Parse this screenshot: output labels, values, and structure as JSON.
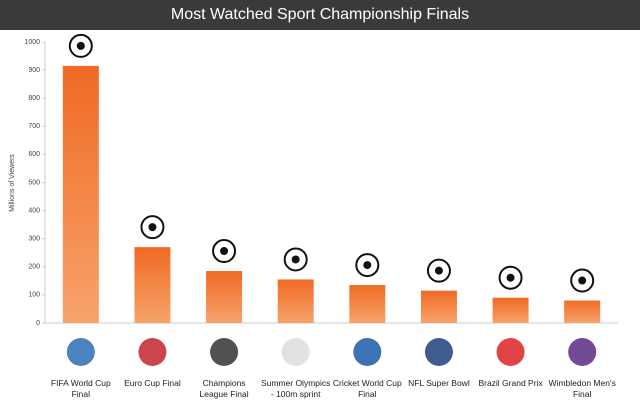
{
  "chart_data": {
    "type": "bar",
    "title": "Most Watched Sport Championship Finals",
    "y_label": "Millions of Viewers",
    "categories": [
      "FIFA World Cup Final",
      "Euro Cup Final",
      "Champions League Final",
      "Summer Olympics - 100m sprint",
      "Cricket World Cup Final",
      "NFL Super Bowl",
      "Brazil Grand Prix",
      "Wimbledon Men's Final"
    ],
    "values": [
      915,
      270,
      185,
      155,
      135,
      115,
      90,
      80
    ],
    "color": "#f07a30",
    "ylim": [
      0,
      1000
    ],
    "yticks": [
      0,
      100,
      200,
      300,
      400,
      500,
      600,
      700,
      800,
      900,
      1000
    ],
    "grid": false
  }
}
